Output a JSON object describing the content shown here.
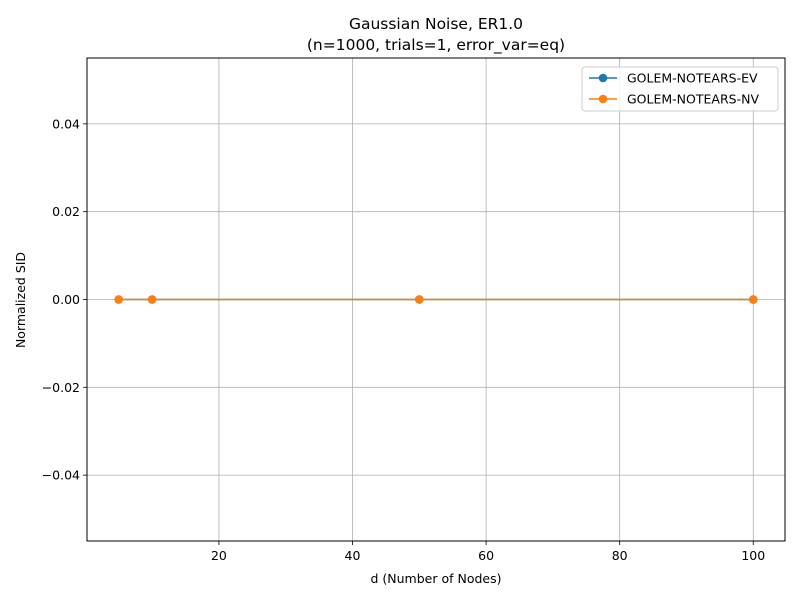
{
  "chart_data": {
    "type": "line",
    "title_line1": "Gaussian Noise, ER1.0",
    "title_line2": "(n=1000, trials=1, error_var=eq)",
    "xlabel": "d (Number of Nodes)",
    "ylabel": "Normalized SID",
    "xlim": [
      0.25,
      104.75
    ],
    "ylim": [
      -0.055,
      0.055
    ],
    "x_ticks": [
      20,
      40,
      60,
      80,
      100
    ],
    "x_tick_labels": [
      "20",
      "40",
      "60",
      "80",
      "100"
    ],
    "y_ticks": [
      -0.04,
      -0.02,
      0.0,
      0.02,
      0.04
    ],
    "y_tick_labels": [
      "−0.04",
      "−0.02",
      "0.00",
      "0.02",
      "0.04"
    ],
    "grid": true,
    "legend_position": "top-right",
    "x": [
      5,
      10,
      50,
      100
    ],
    "series": [
      {
        "name": "GOLEM-NOTEARS-EV",
        "color": "#1f77b4",
        "values": [
          0.0,
          0.0,
          0.0,
          0.0
        ]
      },
      {
        "name": "GOLEM-NOTEARS-NV",
        "color": "#ff7f0e",
        "values": [
          0.0,
          0.0,
          0.0,
          0.0
        ]
      }
    ]
  }
}
